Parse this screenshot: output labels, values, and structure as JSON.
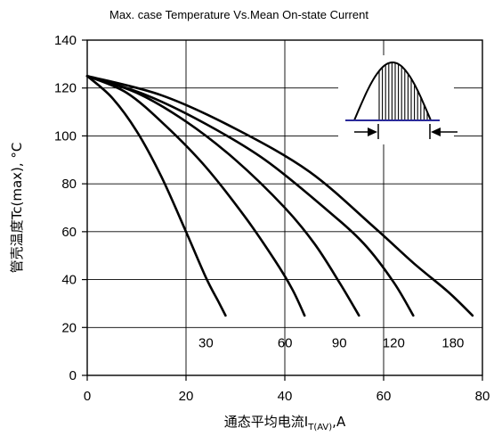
{
  "chart_data": {
    "type": "line",
    "title": "Max. case Temperature Vs.Mean On-state Current",
    "ylabel": "管壳温度Tc(max), °C",
    "xlabel": {
      "main": "通态平均电流I",
      "subscript": "T(AV)",
      "suffix": ",A"
    },
    "xlim": [
      0,
      80
    ],
    "ylim": [
      0,
      140
    ],
    "xticks": [
      0,
      20,
      40,
      60,
      80
    ],
    "yticks": [
      0,
      20,
      40,
      60,
      80,
      100,
      120,
      140
    ],
    "grid": true,
    "series": [
      {
        "name": "30",
        "x": [
          0,
          5,
          10,
          15,
          20,
          24,
          26.5,
          28
        ],
        "y": [
          125,
          116,
          102,
          83,
          60,
          41,
          31,
          25
        ]
      },
      {
        "name": "60",
        "x": [
          0,
          8,
          16,
          24,
          32,
          38,
          41.5,
          44
        ],
        "y": [
          125,
          118,
          104,
          87,
          66,
          48,
          36,
          25
        ]
      },
      {
        "name": "90",
        "x": [
          0,
          10,
          20,
          30,
          40,
          46,
          51,
          55
        ],
        "y": [
          125,
          118,
          106,
          90,
          70,
          55,
          39,
          25
        ]
      },
      {
        "name": "120",
        "x": [
          0,
          12,
          24,
          36,
          48,
          56,
          62,
          66
        ],
        "y": [
          125,
          117,
          105,
          90,
          70,
          55,
          39,
          25
        ]
      },
      {
        "name": "180",
        "x": [
          0,
          15,
          30,
          45,
          58,
          66,
          73,
          78
        ],
        "y": [
          125,
          117,
          103,
          85,
          62,
          47,
          35,
          25
        ]
      }
    ]
  }
}
